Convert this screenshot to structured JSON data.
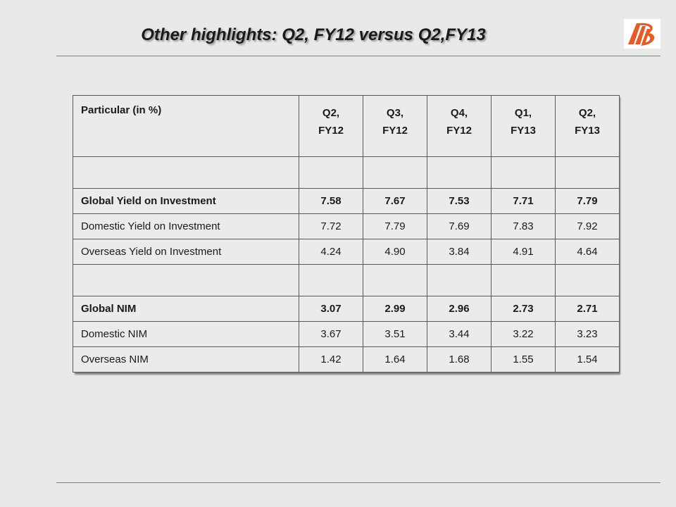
{
  "slide": {
    "title": "Other highlights: Q2, FY12 versus Q2,FY13",
    "logo_icon": "bank-of-baroda-logo",
    "accent_color": "#e85a25"
  },
  "table": {
    "header": {
      "particular": "Particular (in %)",
      "columns": [
        {
          "line1": "Q2,",
          "line2": "FY12"
        },
        {
          "line1": "Q3,",
          "line2": "FY12"
        },
        {
          "line1": "Q4,",
          "line2": "FY12"
        },
        {
          "line1": "Q1,",
          "line2": "FY13"
        },
        {
          "line1": "Q2,",
          "line2": "FY13"
        }
      ]
    },
    "rows": [
      {
        "label": "Global Yield on Investment",
        "values": [
          "7.58",
          "7.67",
          "7.53",
          "7.71",
          "7.79"
        ]
      },
      {
        "label": "Domestic Yield on Investment",
        "values": [
          "7.72",
          "7.79",
          "7.69",
          "7.83",
          "7.92"
        ]
      },
      {
        "label": "Overseas Yield on Investment",
        "values": [
          "4.24",
          "4.90",
          "3.84",
          "4.91",
          "4.64"
        ]
      },
      {
        "label": "Global NIM",
        "values": [
          "3.07",
          "2.99",
          "2.96",
          "2.73",
          "2.71"
        ]
      },
      {
        "label": "Domestic NIM",
        "values": [
          "3.67",
          "3.51",
          "3.44",
          "3.22",
          "3.23"
        ]
      },
      {
        "label": "Overseas NIM",
        "values": [
          "1.42",
          "1.64",
          "1.68",
          "1.55",
          "1.54"
        ]
      }
    ]
  }
}
